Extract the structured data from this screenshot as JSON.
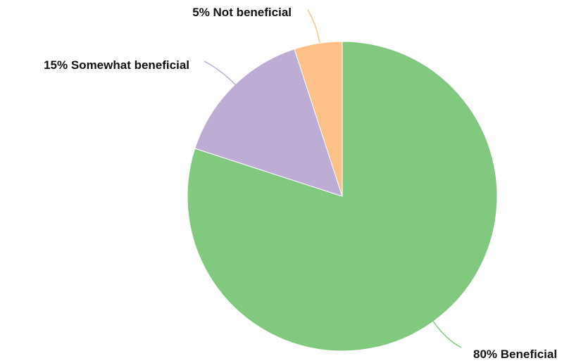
{
  "chart_data": {
    "type": "pie",
    "slices": [
      {
        "label": "Beneficial",
        "value": 80,
        "color": "#80c97f"
      },
      {
        "label": "Somewhat beneficial",
        "value": 15,
        "color": "#bdadd4"
      },
      {
        "label": "Not beneficial",
        "value": 5,
        "color": "#fdc086"
      }
    ],
    "data_labels": [
      "80% Beneficial",
      "15% Somewhat beneficial",
      "5% Not beneficial"
    ],
    "start_angle_deg": 0,
    "direction": "clockwise",
    "legend": "none"
  }
}
